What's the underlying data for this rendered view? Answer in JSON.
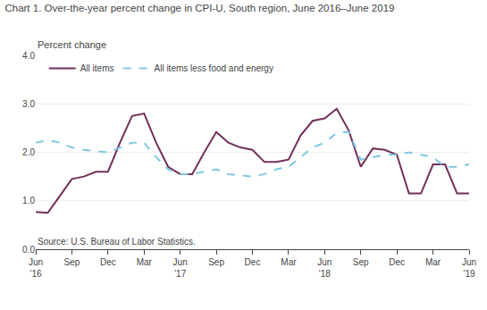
{
  "chart_data": {
    "type": "line",
    "title": "Chart 1. Over-the-year percent change in CPI-U, South region, June 2016–June 2019",
    "ylabel": "Percent change",
    "annotations": [
      "Source: U.S. Bureau of Labor Statistics."
    ],
    "categories": [
      "Jun\n'16",
      null,
      null,
      "Sep",
      null,
      null,
      "Dec",
      null,
      null,
      "Mar",
      null,
      null,
      "Jun\n'17",
      null,
      null,
      "Sep",
      null,
      null,
      "Dec",
      null,
      null,
      "Mar",
      null,
      null,
      "Jun\n'18",
      null,
      null,
      "Sep",
      null,
      null,
      "Dec",
      null,
      null,
      "Mar",
      null,
      null,
      "Jun\n'19"
    ],
    "series": [
      {
        "name": "All items",
        "color": "#722F5A",
        "line_style": "solid",
        "values": [
          0.77,
          0.75,
          1.1,
          1.45,
          1.5,
          1.6,
          1.6,
          2.2,
          2.75,
          2.8,
          2.2,
          1.7,
          1.55,
          1.55,
          2.0,
          2.42,
          2.2,
          2.1,
          2.05,
          1.8,
          1.8,
          1.85,
          2.35,
          2.65,
          2.7,
          2.9,
          2.45,
          1.7,
          2.08,
          2.05,
          1.95,
          1.15,
          1.15,
          1.75,
          1.75,
          1.15,
          1.15
        ]
      },
      {
        "name": "All items less food and energy",
        "color": "#7EC8E3",
        "line_style": "dashed",
        "values": [
          2.2,
          2.25,
          2.2,
          2.1,
          2.05,
          2.02,
          2.0,
          2.1,
          2.2,
          2.2,
          1.9,
          1.65,
          1.55,
          1.55,
          1.6,
          1.65,
          1.55,
          1.52,
          1.5,
          1.55,
          1.65,
          1.7,
          1.9,
          2.1,
          2.2,
          2.4,
          2.42,
          1.85,
          1.9,
          1.95,
          1.95,
          2.0,
          1.95,
          1.9,
          1.7,
          1.7,
          1.75
        ]
      }
    ],
    "ylim": [
      0.0,
      4.0
    ],
    "yticks": [
      {
        "value": 0.0,
        "label": "0.0"
      },
      {
        "value": 1.0,
        "label": "1.0"
      },
      {
        "value": 2.0,
        "label": "2.0"
      },
      {
        "value": 3.0,
        "label": "3.0"
      },
      {
        "value": 4.0,
        "label": "4.0"
      }
    ],
    "grid": true,
    "legend": "upper left"
  }
}
